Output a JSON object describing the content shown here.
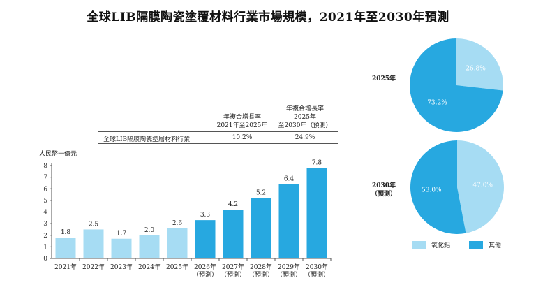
{
  "title": "全球LIB隔膜陶瓷塗覆材料行業市場規模，2021年至2030年預測",
  "cagr_table": {
    "col1_lines": [
      "年複合增長率",
      "2021年至2025年"
    ],
    "col2_lines": [
      "年複合增長率",
      "2025年",
      "至2030年（預測）"
    ],
    "row_label": "全球LIB隔膜陶瓷塗層材料行業",
    "col1_value": "10.2%",
    "col2_value": "24.9%"
  },
  "colors": {
    "historical": "#a6dcf3",
    "forecast": "#27a8e0",
    "axis": "#555555"
  },
  "chart_data": [
    {
      "type": "bar",
      "ylabel": "人民幣十億元",
      "ylim": [
        0,
        8
      ],
      "yticks": [
        0,
        1,
        2,
        3,
        4,
        5,
        6,
        7,
        8
      ],
      "categories": [
        [
          "2021年"
        ],
        [
          "2022年"
        ],
        [
          "2023年"
        ],
        [
          "2024年"
        ],
        [
          "2025年"
        ],
        [
          "2026年",
          "（預測）"
        ],
        [
          "2027年",
          "（預測）"
        ],
        [
          "2028年",
          "（預測）"
        ],
        [
          "2029年",
          "（預測）"
        ],
        [
          "2030年",
          "（預測）"
        ]
      ],
      "values": [
        1.8,
        2.5,
        1.7,
        2.0,
        2.6,
        3.3,
        4.2,
        5.2,
        6.4,
        7.8
      ],
      "value_labels": [
        "1.8",
        "2.5",
        "1.7",
        "2.0",
        "2.6",
        "3.3",
        "4.2",
        "5.2",
        "6.4",
        "7.8"
      ],
      "forecast_from_index": 5
    },
    {
      "type": "pie",
      "label": "2025年",
      "slices": [
        {
          "legend_index": 0,
          "value": 26.8,
          "label": "26.8%"
        },
        {
          "legend_index": 1,
          "value": 73.2,
          "label": "73.2%"
        }
      ]
    },
    {
      "type": "pie",
      "label_lines": [
        "2030年",
        "（預測）"
      ],
      "slices": [
        {
          "legend_index": 0,
          "value": 47.0,
          "label": "47.0%"
        },
        {
          "legend_index": 1,
          "value": 53.0,
          "label": "53.0%"
        }
      ]
    }
  ],
  "legend": [
    {
      "label": "氧化鋁",
      "color": "#a6dcf3"
    },
    {
      "label": "其他",
      "color": "#27a8e0"
    }
  ]
}
